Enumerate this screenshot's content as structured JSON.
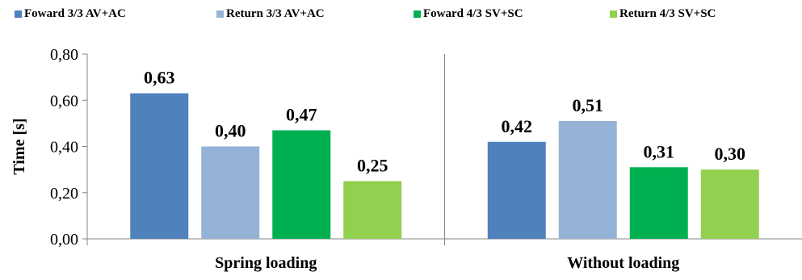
{
  "chart_data": {
    "type": "bar",
    "title": "",
    "xlabel": "",
    "ylabel": "Time [s]",
    "ylim": [
      0,
      0.8
    ],
    "yticks": [
      "0,00",
      "0,20",
      "0,40",
      "0,60",
      "0,80"
    ],
    "grid": false,
    "legend_position": "top",
    "categories": [
      "Spring loading",
      "Without loading"
    ],
    "series": [
      {
        "name": "Foward 3/3 AV+AC",
        "color": "#4F81BD",
        "values": [
          0.63,
          0.42
        ],
        "labels": [
          "0,63",
          "0,42"
        ]
      },
      {
        "name": "Return 3/3 AV+AC",
        "color": "#95B3D7",
        "values": [
          0.4,
          0.51
        ],
        "labels": [
          "0,40",
          "0,51"
        ]
      },
      {
        "name": "Foward 4/3 SV+SC",
        "color": "#00B050",
        "values": [
          0.47,
          0.31
        ],
        "labels": [
          "0,47",
          "0,31"
        ]
      },
      {
        "name": "Return 4/3 SV+SC",
        "color": "#92D050",
        "values": [
          0.25,
          0.3
        ],
        "labels": [
          "0,25",
          "0,30"
        ]
      }
    ]
  }
}
